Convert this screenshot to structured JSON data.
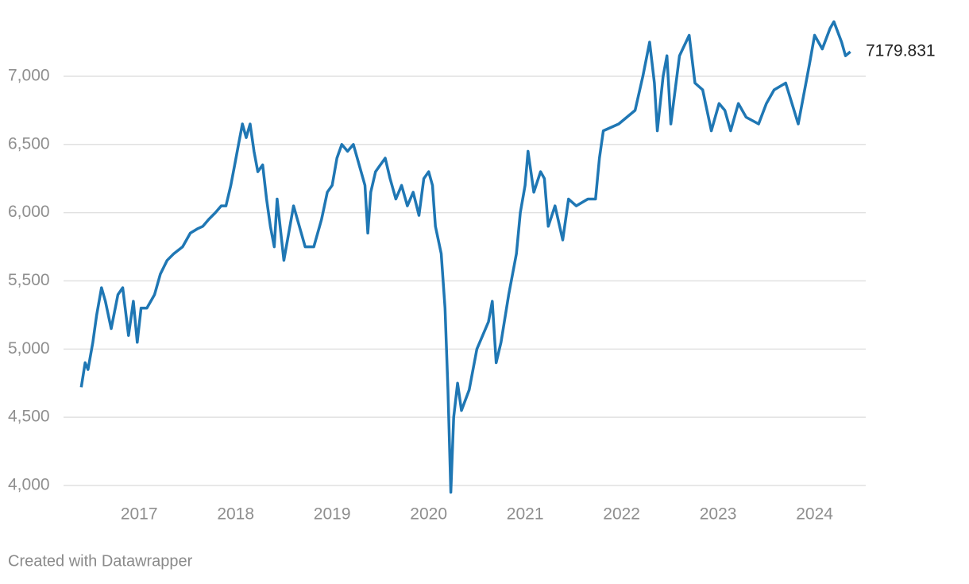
{
  "chart_data": {
    "type": "line",
    "x": [
      2016.4,
      2016.44,
      2016.47,
      2016.52,
      2016.56,
      2016.61,
      2016.65,
      2016.71,
      2016.78,
      2016.83,
      2016.89,
      2016.94,
      2016.98,
      2017.02,
      2017.08,
      2017.16,
      2017.22,
      2017.29,
      2017.36,
      2017.45,
      2017.53,
      2017.6,
      2017.66,
      2017.72,
      2017.79,
      2017.85,
      2017.9,
      2017.95,
      2017.99,
      2018.03,
      2018.07,
      2018.11,
      2018.15,
      2018.19,
      2018.23,
      2018.28,
      2018.32,
      2018.36,
      2018.4,
      2018.43,
      2018.5,
      2018.55,
      2018.6,
      2018.66,
      2018.72,
      2018.81,
      2018.89,
      2018.95,
      2019.0,
      2019.05,
      2019.1,
      2019.16,
      2019.22,
      2019.28,
      2019.34,
      2019.37,
      2019.4,
      2019.45,
      2019.5,
      2019.55,
      2019.6,
      2019.66,
      2019.72,
      2019.78,
      2019.84,
      2019.9,
      2019.95,
      2020.0,
      2020.04,
      2020.07,
      2020.13,
      2020.17,
      2020.2,
      2020.23,
      2020.26,
      2020.3,
      2020.34,
      2020.42,
      2020.5,
      2020.56,
      2020.62,
      2020.66,
      2020.7,
      2020.75,
      2020.83,
      2020.91,
      2020.95,
      2021.0,
      2021.03,
      2021.09,
      2021.16,
      2021.2,
      2021.24,
      2021.31,
      2021.39,
      2021.45,
      2021.53,
      2021.65,
      2021.73,
      2021.77,
      2021.81,
      2021.97,
      2022.14,
      2022.22,
      2022.29,
      2022.34,
      2022.37,
      2022.43,
      2022.47,
      2022.51,
      2022.6,
      2022.7,
      2022.76,
      2022.84,
      2022.93,
      2023.01,
      2023.07,
      2023.13,
      2023.21,
      2023.29,
      2023.42,
      2023.5,
      2023.58,
      2023.7,
      2023.83,
      2023.91,
      2023.95,
      2024.0,
      2024.08,
      2024.16,
      2024.2,
      2024.28,
      2024.32,
      2024.37
    ],
    "series": [
      {
        "color": "#1f77b4",
        "values": [
          4720,
          4900,
          4850,
          5050,
          5250,
          5450,
          5350,
          5150,
          5400,
          5450,
          5100,
          5350,
          5050,
          5300,
          5300,
          5400,
          5550,
          5650,
          5700,
          5750,
          5850,
          5880,
          5900,
          5950,
          6000,
          6050,
          6050,
          6200,
          6350,
          6500,
          6650,
          6550,
          6650,
          6450,
          6300,
          6350,
          6100,
          5900,
          5750,
          6100,
          5650,
          5850,
          6050,
          5900,
          5750,
          5750,
          5950,
          6150,
          6200,
          6400,
          6500,
          6450,
          6500,
          6350,
          6200,
          5850,
          6150,
          6300,
          6350,
          6400,
          6250,
          6100,
          6200,
          6050,
          6150,
          5980,
          6250,
          6300,
          6200,
          5900,
          5700,
          5300,
          4700,
          3950,
          4500,
          4750,
          4550,
          4700,
          5000,
          5100,
          5200,
          5350,
          4900,
          5050,
          5400,
          5700,
          6000,
          6200,
          6450,
          6150,
          6300,
          6250,
          5900,
          6050,
          5800,
          6100,
          6050,
          6100,
          6100,
          6400,
          6600,
          6650,
          6750,
          7000,
          7250,
          6950,
          6600,
          7000,
          7150,
          6650,
          7150,
          7300,
          6950,
          6900,
          6600,
          6800,
          6750,
          6600,
          6800,
          6700,
          6650,
          6800,
          6900,
          6950,
          6650,
          6950,
          7100,
          7300,
          7200,
          7350,
          7400,
          7250,
          7150,
          7179.831
        ]
      }
    ],
    "xlim": [
      2016.2,
      2024.53
    ],
    "xticks": [
      2017,
      2018,
      2019,
      2020,
      2021,
      2022,
      2023,
      2024
    ],
    "ylim": [
      3900,
      7500
    ],
    "yticks": [
      {
        "value": 4000,
        "label": "4,000"
      },
      {
        "value": 4500,
        "label": "4,500"
      },
      {
        "value": 5000,
        "label": "5,000"
      },
      {
        "value": 5500,
        "label": "5,500"
      },
      {
        "value": 6000,
        "label": "6,000"
      },
      {
        "value": 6500,
        "label": "6,500"
      },
      {
        "value": 7000,
        "label": "7,000"
      }
    ],
    "grid": true,
    "footer": "Created with Datawrapper"
  }
}
